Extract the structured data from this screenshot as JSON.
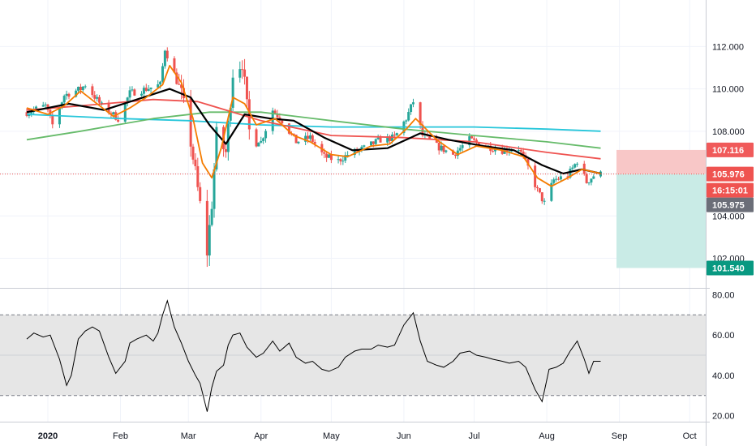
{
  "colors": {
    "bull": "#26a69a",
    "bear": "#ef5350",
    "ema_fast": "#f57c00",
    "sma_mid": "#000000",
    "ma_red": "#ef5350",
    "ma_green": "#66bb6a",
    "ma_cyan": "#26c6da",
    "rsi_line": "#000000",
    "rsi_band": "#e6e6e6",
    "grid": "#f0f3fa",
    "axis_text": "#131722",
    "risk_zone": "#f8c7c7",
    "reward_zone": "#c9ebe6",
    "price_line": "#ef5350"
  },
  "chart_data": [
    {
      "type": "candlestick",
      "title": "",
      "y_ticks": [
        102.0,
        104.0,
        106.0,
        108.0,
        110.0,
        112.0
      ],
      "y_tick_labels": [
        "102.000",
        "104.000",
        "106.000",
        "108.000",
        "110.000",
        "112.000"
      ],
      "ylim": [
        100.6,
        114.2
      ],
      "x_labels": [
        "2020",
        "Feb",
        "Mar",
        "Apr",
        "May",
        "Jun",
        "Jul",
        "Aug",
        "Sep",
        "Oct"
      ],
      "x_label_dates": [
        "2020-01-01",
        "2020-02-01",
        "2020-03-01",
        "2020-04-01",
        "2020-05-01",
        "2020-06-01",
        "2020-07-01",
        "2020-08-01",
        "2020-09-01",
        "2020-10-01"
      ],
      "last_price": 105.976,
      "countdown": "16:15:01",
      "bid_price": 105.975,
      "stop_level": 107.116,
      "target_level": 101.54,
      "close_path": [
        [
          "2019-12-23",
          108.9
        ],
        [
          "2019-12-31",
          109.2
        ],
        [
          "2020-01-03",
          108.3
        ],
        [
          "2020-01-08",
          109.7
        ],
        [
          "2020-01-15",
          110.0
        ],
        [
          "2020-01-17",
          110.2
        ],
        [
          "2020-01-24",
          109.2
        ],
        [
          "2020-01-31",
          108.6
        ],
        [
          "2020-02-05",
          109.8
        ],
        [
          "2020-02-12",
          110.0
        ],
        [
          "2020-02-18",
          110.2
        ],
        [
          "2020-02-20",
          111.9
        ],
        [
          "2020-02-24",
          110.7
        ],
        [
          "2020-02-27",
          109.7
        ],
        [
          "2020-03-02",
          107.5
        ],
        [
          "2020-03-06",
          104.5
        ],
        [
          "2020-03-09",
          102.3
        ],
        [
          "2020-03-11",
          104.6
        ],
        [
          "2020-03-13",
          107.8
        ],
        [
          "2020-03-17",
          107.0
        ],
        [
          "2020-03-20",
          110.8
        ],
        [
          "2020-03-24",
          111.3
        ],
        [
          "2020-03-27",
          108.0
        ],
        [
          "2020-04-01",
          107.5
        ],
        [
          "2020-04-06",
          109.0
        ],
        [
          "2020-04-10",
          108.5
        ],
        [
          "2020-04-16",
          107.5
        ],
        [
          "2020-04-22",
          107.7
        ],
        [
          "2020-04-28",
          106.8
        ],
        [
          "2020-05-04",
          106.6
        ],
        [
          "2020-05-08",
          106.9
        ],
        [
          "2020-05-15",
          107.2
        ],
        [
          "2020-05-22",
          107.6
        ],
        [
          "2020-05-28",
          107.7
        ],
        [
          "2020-06-02",
          108.6
        ],
        [
          "2020-06-05",
          109.4
        ],
        [
          "2020-06-09",
          107.8
        ],
        [
          "2020-06-15",
          107.3
        ],
        [
          "2020-06-22",
          106.9
        ],
        [
          "2020-06-29",
          107.6
        ],
        [
          "2020-07-06",
          107.3
        ],
        [
          "2020-07-13",
          107.1
        ],
        [
          "2020-07-20",
          107.2
        ],
        [
          "2020-07-24",
          106.3
        ],
        [
          "2020-07-28",
          105.2
        ],
        [
          "2020-07-31",
          104.6
        ],
        [
          "2020-08-04",
          105.7
        ],
        [
          "2020-08-10",
          105.9
        ],
        [
          "2020-08-14",
          106.6
        ],
        [
          "2020-08-18",
          105.6
        ],
        [
          "2020-08-21",
          105.9
        ],
        [
          "2020-08-24",
          105.976
        ]
      ],
      "series": [
        {
          "name": "",
          "color_key": "ema_fast",
          "values": [
            [
              "2019-12-23",
              109.1
            ],
            [
              "2020-01-01",
              108.8
            ],
            [
              "2020-01-08",
              109.2
            ],
            [
              "2020-01-15",
              109.9
            ],
            [
              "2020-01-22",
              109.3
            ],
            [
              "2020-01-29",
              108.7
            ],
            [
              "2020-02-05",
              109.1
            ],
            [
              "2020-02-12",
              109.6
            ],
            [
              "2020-02-19",
              110.2
            ],
            [
              "2020-02-22",
              111.1
            ],
            [
              "2020-02-27",
              110.3
            ],
            [
              "2020-03-03",
              108.6
            ],
            [
              "2020-03-07",
              106.5
            ],
            [
              "2020-03-11",
              105.8
            ],
            [
              "2020-03-15",
              107.2
            ],
            [
              "2020-03-20",
              109.6
            ],
            [
              "2020-03-25",
              109.3
            ],
            [
              "2020-03-30",
              108.3
            ],
            [
              "2020-04-07",
              108.6
            ],
            [
              "2020-04-15",
              107.8
            ],
            [
              "2020-04-22",
              107.5
            ],
            [
              "2020-05-01",
              106.9
            ],
            [
              "2020-05-08",
              106.8
            ],
            [
              "2020-05-18",
              107.3
            ],
            [
              "2020-05-26",
              107.4
            ],
            [
              "2020-06-02",
              108.1
            ],
            [
              "2020-06-06",
              108.6
            ],
            [
              "2020-06-15",
              107.6
            ],
            [
              "2020-06-24",
              106.9
            ],
            [
              "2020-07-02",
              107.3
            ],
            [
              "2020-07-13",
              107.1
            ],
            [
              "2020-07-22",
              106.8
            ],
            [
              "2020-07-28",
              105.8
            ],
            [
              "2020-08-03",
              105.4
            ],
            [
              "2020-08-10",
              105.8
            ],
            [
              "2020-08-16",
              106.2
            ],
            [
              "2020-08-24",
              106.0
            ]
          ]
        },
        {
          "name": "",
          "color_key": "sma_mid",
          "values": [
            [
              "2019-12-23",
              108.9
            ],
            [
              "2020-01-10",
              109.3
            ],
            [
              "2020-01-25",
              109.0
            ],
            [
              "2020-02-08",
              109.5
            ],
            [
              "2020-02-22",
              110.0
            ],
            [
              "2020-03-02",
              109.6
            ],
            [
              "2020-03-10",
              108.3
            ],
            [
              "2020-03-17",
              107.4
            ],
            [
              "2020-03-25",
              108.8
            ],
            [
              "2020-04-05",
              108.6
            ],
            [
              "2020-04-15",
              108.5
            ],
            [
              "2020-04-28",
              107.7
            ],
            [
              "2020-05-10",
              107.1
            ],
            [
              "2020-05-25",
              107.2
            ],
            [
              "2020-06-08",
              107.9
            ],
            [
              "2020-06-20",
              107.6
            ],
            [
              "2020-07-05",
              107.3
            ],
            [
              "2020-07-18",
              107.1
            ],
            [
              "2020-07-30",
              106.4
            ],
            [
              "2020-08-08",
              106.0
            ],
            [
              "2020-08-16",
              106.2
            ],
            [
              "2020-08-24",
              106.0
            ]
          ]
        },
        {
          "name": "",
          "color_key": "ma_red",
          "values": [
            [
              "2019-12-23",
              109.0
            ],
            [
              "2020-01-15",
              109.2
            ],
            [
              "2020-02-15",
              109.5
            ],
            [
              "2020-03-05",
              109.4
            ],
            [
              "2020-04-01",
              108.5
            ],
            [
              "2020-05-01",
              107.8
            ],
            [
              "2020-06-01",
              107.7
            ],
            [
              "2020-07-01",
              107.5
            ],
            [
              "2020-08-01",
              107.0
            ],
            [
              "2020-08-24",
              106.7
            ]
          ]
        },
        {
          "name": "",
          "color_key": "ma_green",
          "values": [
            [
              "2019-12-23",
              107.6
            ],
            [
              "2020-01-15",
              108.0
            ],
            [
              "2020-02-15",
              108.6
            ],
            [
              "2020-03-10",
              108.9
            ],
            [
              "2020-04-01",
              108.9
            ],
            [
              "2020-05-01",
              108.5
            ],
            [
              "2020-06-01",
              108.1
            ],
            [
              "2020-07-01",
              107.8
            ],
            [
              "2020-08-01",
              107.5
            ],
            [
              "2020-08-24",
              107.2
            ]
          ]
        },
        {
          "name": "",
          "color_key": "ma_cyan",
          "values": [
            [
              "2019-12-23",
              108.8
            ],
            [
              "2020-02-01",
              108.6
            ],
            [
              "2020-03-01",
              108.5
            ],
            [
              "2020-04-01",
              108.3
            ],
            [
              "2020-05-01",
              108.2
            ],
            [
              "2020-06-01",
              108.2
            ],
            [
              "2020-07-01",
              108.2
            ],
            [
              "2020-08-01",
              108.1
            ],
            [
              "2020-08-24",
              108.0
            ]
          ]
        }
      ]
    },
    {
      "type": "line",
      "title": "",
      "y_ticks": [
        20,
        40,
        60,
        80
      ],
      "y_tick_labels": [
        "20.00",
        "40.00",
        "60.00",
        "80.00"
      ],
      "ylim": [
        17,
        83
      ],
      "band": [
        30,
        70
      ],
      "series": [
        {
          "name": "",
          "values": [
            [
              "2019-12-23",
              58
            ],
            [
              "2019-12-26",
              61
            ],
            [
              "2019-12-30",
              59
            ],
            [
              "2020-01-02",
              60
            ],
            [
              "2020-01-06",
              48
            ],
            [
              "2020-01-09",
              35
            ],
            [
              "2020-01-11",
              40
            ],
            [
              "2020-01-14",
              58
            ],
            [
              "2020-01-17",
              62
            ],
            [
              "2020-01-20",
              64
            ],
            [
              "2020-01-23",
              62
            ],
            [
              "2020-01-27",
              49
            ],
            [
              "2020-01-30",
              41
            ],
            [
              "2020-02-03",
              47
            ],
            [
              "2020-02-05",
              56
            ],
            [
              "2020-02-08",
              58
            ],
            [
              "2020-02-12",
              60
            ],
            [
              "2020-02-15",
              57
            ],
            [
              "2020-02-17",
              61
            ],
            [
              "2020-02-19",
              70
            ],
            [
              "2020-02-21",
              77
            ],
            [
              "2020-02-24",
              64
            ],
            [
              "2020-02-27",
              56
            ],
            [
              "2020-03-01",
              47
            ],
            [
              "2020-03-04",
              40
            ],
            [
              "2020-03-06",
              36
            ],
            [
              "2020-03-09",
              22
            ],
            [
              "2020-03-11",
              34
            ],
            [
              "2020-03-13",
              42
            ],
            [
              "2020-03-16",
              45
            ],
            [
              "2020-03-18",
              55
            ],
            [
              "2020-03-20",
              60
            ],
            [
              "2020-03-23",
              61
            ],
            [
              "2020-03-26",
              54
            ],
            [
              "2020-03-30",
              49
            ],
            [
              "2020-04-02",
              51
            ],
            [
              "2020-04-06",
              57
            ],
            [
              "2020-04-09",
              52
            ],
            [
              "2020-04-13",
              56
            ],
            [
              "2020-04-16",
              49
            ],
            [
              "2020-04-20",
              46
            ],
            [
              "2020-04-23",
              47
            ],
            [
              "2020-04-27",
              43
            ],
            [
              "2020-04-30",
              42
            ],
            [
              "2020-05-04",
              44
            ],
            [
              "2020-05-07",
              49
            ],
            [
              "2020-05-11",
              52
            ],
            [
              "2020-05-14",
              53
            ],
            [
              "2020-05-18",
              53
            ],
            [
              "2020-05-21",
              55
            ],
            [
              "2020-05-25",
              54
            ],
            [
              "2020-05-28",
              55
            ],
            [
              "2020-06-01",
              65
            ],
            [
              "2020-06-05",
              71
            ],
            [
              "2020-06-08",
              57
            ],
            [
              "2020-06-11",
              47
            ],
            [
              "2020-06-15",
              45
            ],
            [
              "2020-06-18",
              44
            ],
            [
              "2020-06-22",
              47
            ],
            [
              "2020-06-25",
              51
            ],
            [
              "2020-06-29",
              52
            ],
            [
              "2020-07-02",
              50
            ],
            [
              "2020-07-06",
              49
            ],
            [
              "2020-07-09",
              48
            ],
            [
              "2020-07-13",
              47
            ],
            [
              "2020-07-16",
              46
            ],
            [
              "2020-07-20",
              47
            ],
            [
              "2020-07-23",
              44
            ],
            [
              "2020-07-27",
              33
            ],
            [
              "2020-07-30",
              27
            ],
            [
              "2020-08-02",
              43
            ],
            [
              "2020-08-05",
              44
            ],
            [
              "2020-08-08",
              46
            ],
            [
              "2020-08-11",
              52
            ],
            [
              "2020-08-14",
              57
            ],
            [
              "2020-08-17",
              48
            ],
            [
              "2020-08-19",
              41
            ],
            [
              "2020-08-21",
              47
            ],
            [
              "2020-08-24",
              47
            ]
          ]
        }
      ]
    }
  ]
}
